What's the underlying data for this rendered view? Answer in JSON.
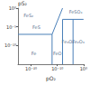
{
  "chart_data": {
    "type": "line",
    "x_label": "pO₂",
    "y_label": "pS₂",
    "log": true,
    "grid": false,
    "color": "#4a7fb8",
    "xlim": [
      1e-25,
      1
    ],
    "ylim": [
      1e-15,
      1
    ],
    "xticks": [
      {
        "value": 1e-20,
        "label": "10⁻²⁰"
      },
      {
        "value": 1e-10,
        "label": "10⁻¹⁰"
      },
      {
        "value": 1,
        "label": "10⁰"
      }
    ],
    "yticks": [
      {
        "value": 1e-10,
        "label": "10⁻¹⁰"
      },
      {
        "value": 1e-05,
        "label": "10⁻⁵"
      },
      {
        "value": 1,
        "label": "10⁰"
      }
    ],
    "series": [
      {
        "x": [
          1e-25,
          1e-12
        ],
        "values": [
          1e-07,
          1e-07
        ]
      },
      {
        "x": [
          1e-12,
          1e-12
        ],
        "values": [
          1e-15,
          1e-07
        ]
      },
      {
        "x": [
          1e-12,
          1e-08
        ],
        "values": [
          1e-07,
          1
        ]
      },
      {
        "x": [
          1e-08,
          1e-08
        ],
        "values": [
          1e-15,
          0.001
        ]
      },
      {
        "x": [
          1e-08,
          1
        ],
        "values": [
          0.001,
          0.001
        ]
      },
      {
        "x": [
          0.0001,
          0.0001
        ],
        "values": [
          1e-15,
          0.001
        ]
      }
    ],
    "annotations": [
      {
        "text": "FeS₂",
        "x": 1e-21,
        "y": 0.01
      },
      {
        "text": "FeS",
        "x": 1e-18,
        "y": 1e-05
      },
      {
        "text": "Fe",
        "x": 1e-19,
        "y": 1e-12
      },
      {
        "text": "FeO",
        "x": 1e-10,
        "y": 1e-12
      },
      {
        "text": "Fe₃O₄",
        "x": 1e-06,
        "y": 1e-09
      },
      {
        "text": "Fe₂O₃",
        "x": 0.01,
        "y": 1e-09
      },
      {
        "text": "FeSO₄",
        "x": 0.001,
        "y": 0.1
      }
    ]
  }
}
